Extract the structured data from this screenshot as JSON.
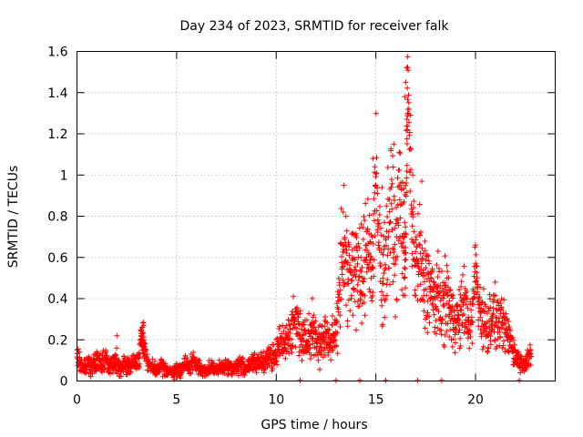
{
  "chart_data": {
    "type": "scatter",
    "title": "Day 234 of 2023, SRMTID for receiver falk",
    "xlabel": "GPS time / hours",
    "ylabel": "SRMTID / TECUs",
    "xlim": [
      0,
      24
    ],
    "ylim": [
      0,
      1.6
    ],
    "xticks": [
      0,
      5,
      10,
      15,
      20
    ],
    "xtick_labels": [
      "0",
      "5",
      "10",
      "15",
      "20"
    ],
    "yticks": [
      0,
      0.2,
      0.4,
      0.6,
      0.8,
      1.0,
      1.2,
      1.4,
      1.6
    ],
    "ytick_labels": [
      "0",
      "0.2",
      "0.4",
      "0.6",
      "0.8",
      "1",
      "1.2",
      "1.4",
      "1.6"
    ],
    "grid": true,
    "marker": "+",
    "color": "#ff0000",
    "series": [
      {
        "name": "SRMTID",
        "x": [
          0.0,
          0.2,
          0.4,
          0.6,
          0.8,
          1.0,
          1.2,
          1.4,
          1.6,
          1.8,
          2.0,
          2.2,
          2.4,
          2.6,
          2.8,
          3.0,
          3.2,
          3.3,
          3.4,
          3.6,
          3.8,
          4.0,
          4.2,
          4.4,
          4.6,
          4.8,
          5.0,
          5.2,
          5.4,
          5.6,
          5.8,
          6.0,
          6.2,
          6.4,
          6.6,
          6.8,
          7.0,
          7.2,
          7.4,
          7.6,
          7.8,
          8.0,
          8.2,
          8.4,
          8.6,
          8.8,
          9.0,
          9.2,
          9.4,
          9.6,
          9.8,
          10.0,
          10.2,
          10.4,
          10.6,
          10.8,
          11.0,
          11.2,
          11.4,
          11.6,
          11.8,
          12.0,
          12.2,
          12.4,
          12.6,
          12.8,
          13.0,
          13.2,
          13.4,
          13.6,
          13.8,
          14.0,
          14.2,
          14.4,
          14.6,
          14.8,
          15.0,
          15.2,
          15.4,
          15.6,
          15.8,
          16.0,
          16.2,
          16.4,
          16.5,
          16.6,
          16.8,
          17.0,
          17.2,
          17.4,
          17.6,
          17.8,
          18.0,
          18.2,
          18.4,
          18.6,
          18.8,
          19.0,
          19.2,
          19.4,
          19.6,
          19.8,
          20.0,
          20.2,
          20.4,
          20.6,
          20.8,
          21.0,
          21.2,
          21.4,
          21.6,
          21.8,
          22.0,
          22.2,
          22.4,
          22.6,
          22.8
        ],
        "y": [
          0.12,
          0.08,
          0.06,
          0.09,
          0.07,
          0.1,
          0.08,
          0.12,
          0.07,
          0.09,
          0.1,
          0.06,
          0.08,
          0.07,
          0.09,
          0.08,
          0.18,
          0.22,
          0.15,
          0.08,
          0.06,
          0.05,
          0.07,
          0.06,
          0.05,
          0.04,
          0.05,
          0.06,
          0.08,
          0.07,
          0.09,
          0.08,
          0.06,
          0.05,
          0.06,
          0.07,
          0.05,
          0.06,
          0.08,
          0.07,
          0.06,
          0.07,
          0.08,
          0.06,
          0.07,
          0.09,
          0.08,
          0.1,
          0.09,
          0.12,
          0.1,
          0.14,
          0.18,
          0.2,
          0.22,
          0.25,
          0.3,
          0.24,
          0.2,
          0.22,
          0.26,
          0.2,
          0.18,
          0.22,
          0.2,
          0.18,
          0.25,
          0.5,
          0.7,
          0.45,
          0.55,
          0.6,
          0.45,
          0.52,
          0.75,
          0.5,
          0.95,
          0.62,
          0.55,
          0.7,
          0.85,
          0.6,
          0.9,
          0.65,
          0.72,
          1.45,
          0.8,
          0.55,
          0.6,
          0.45,
          0.5,
          0.42,
          0.38,
          0.4,
          0.35,
          0.42,
          0.3,
          0.32,
          0.28,
          0.4,
          0.3,
          0.26,
          0.55,
          0.35,
          0.3,
          0.25,
          0.32,
          0.3,
          0.28,
          0.26,
          0.22,
          0.2,
          0.12,
          0.1,
          0.08,
          0.12,
          0.1
        ],
        "spread": [
          0.04,
          0.04,
          0.03,
          0.04,
          0.03,
          0.04,
          0.04,
          0.05,
          0.03,
          0.04,
          0.05,
          0.03,
          0.04,
          0.03,
          0.04,
          0.04,
          0.06,
          0.06,
          0.05,
          0.03,
          0.03,
          0.02,
          0.03,
          0.03,
          0.02,
          0.02,
          0.03,
          0.03,
          0.04,
          0.03,
          0.04,
          0.03,
          0.03,
          0.02,
          0.03,
          0.03,
          0.02,
          0.03,
          0.04,
          0.03,
          0.03,
          0.03,
          0.04,
          0.03,
          0.03,
          0.04,
          0.04,
          0.05,
          0.04,
          0.05,
          0.05,
          0.06,
          0.07,
          0.08,
          0.08,
          0.1,
          0.12,
          0.1,
          0.08,
          0.08,
          0.1,
          0.08,
          0.08,
          0.09,
          0.08,
          0.08,
          0.1,
          0.22,
          0.25,
          0.2,
          0.22,
          0.24,
          0.2,
          0.22,
          0.25,
          0.2,
          0.28,
          0.24,
          0.22,
          0.25,
          0.28,
          0.22,
          0.3,
          0.24,
          0.24,
          0.12,
          0.26,
          0.2,
          0.22,
          0.18,
          0.2,
          0.16,
          0.15,
          0.16,
          0.14,
          0.16,
          0.12,
          0.13,
          0.12,
          0.14,
          0.12,
          0.1,
          0.12,
          0.13,
          0.12,
          0.1,
          0.12,
          0.12,
          0.1,
          0.1,
          0.08,
          0.08,
          0.05,
          0.04,
          0.03,
          0.05,
          0.05
        ]
      }
    ]
  }
}
